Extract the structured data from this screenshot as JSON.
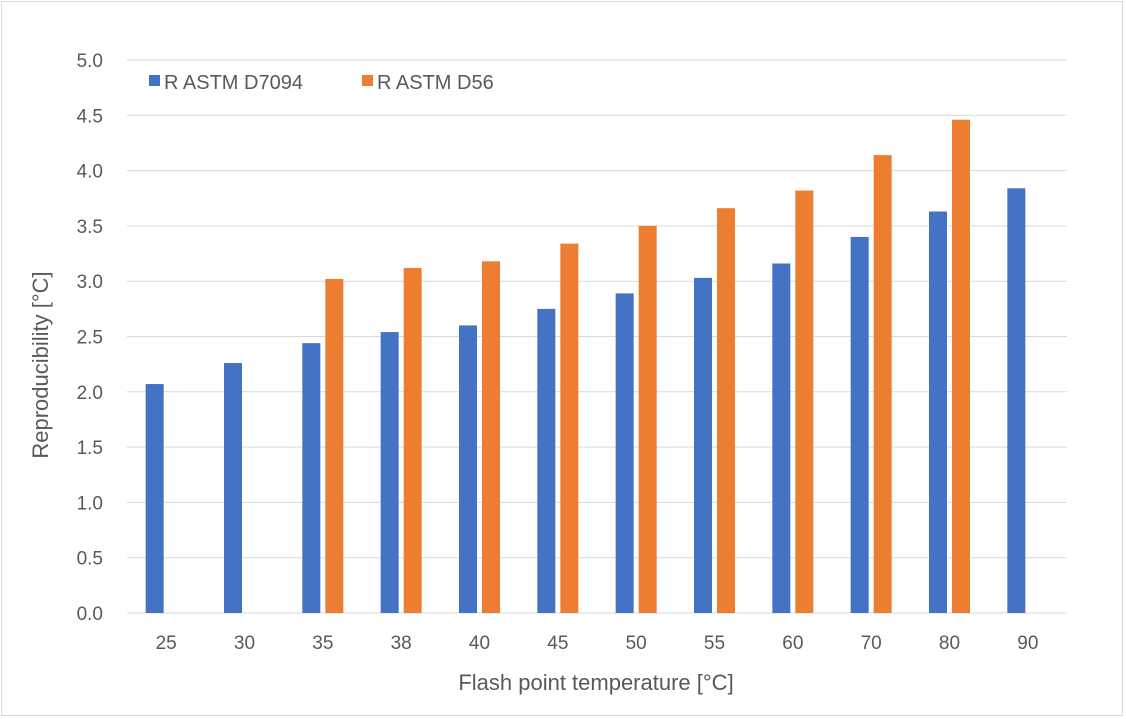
{
  "chart_data": {
    "type": "bar",
    "categories": [
      "25",
      "30",
      "35",
      "38",
      "40",
      "45",
      "50",
      "55",
      "60",
      "70",
      "80",
      "90"
    ],
    "series": [
      {
        "name": "R ASTM D7094",
        "color": "#4472c4",
        "values": [
          2.07,
          2.26,
          2.44,
          2.54,
          2.6,
          2.75,
          2.89,
          3.03,
          3.16,
          3.4,
          3.63,
          3.84
        ]
      },
      {
        "name": "R ASTM D56",
        "color": "#ed7d31",
        "values": [
          null,
          null,
          3.02,
          3.12,
          3.18,
          3.34,
          3.5,
          3.66,
          3.82,
          4.14,
          4.46,
          null
        ]
      }
    ],
    "title": "",
    "xlabel": "Flash point temperature [°C]",
    "ylabel": "Reproducibility [°C]",
    "ylim": [
      0,
      5
    ],
    "yticks": [
      "0.0",
      "0.5",
      "1.0",
      "1.5",
      "2.0",
      "2.5",
      "3.0",
      "3.5",
      "4.0",
      "4.5",
      "5.0"
    ],
    "grid": true,
    "legend_position": "top-left"
  }
}
